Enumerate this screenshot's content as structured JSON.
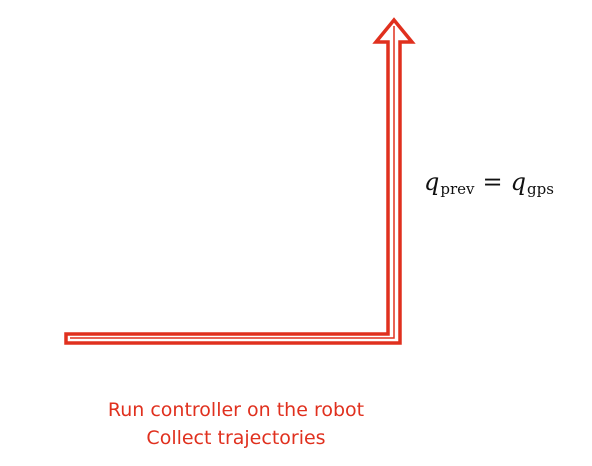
{
  "formula": {
    "left_var": "q",
    "left_sub": "prev",
    "operator": "=",
    "right_var": "q",
    "right_sub": "gps"
  },
  "caption": {
    "line1": "Run controller on the robot",
    "line2": "Collect trajectories"
  },
  "colors": {
    "arrow": "#e0301e",
    "caption": "#e0301e",
    "formula": "#111111"
  }
}
